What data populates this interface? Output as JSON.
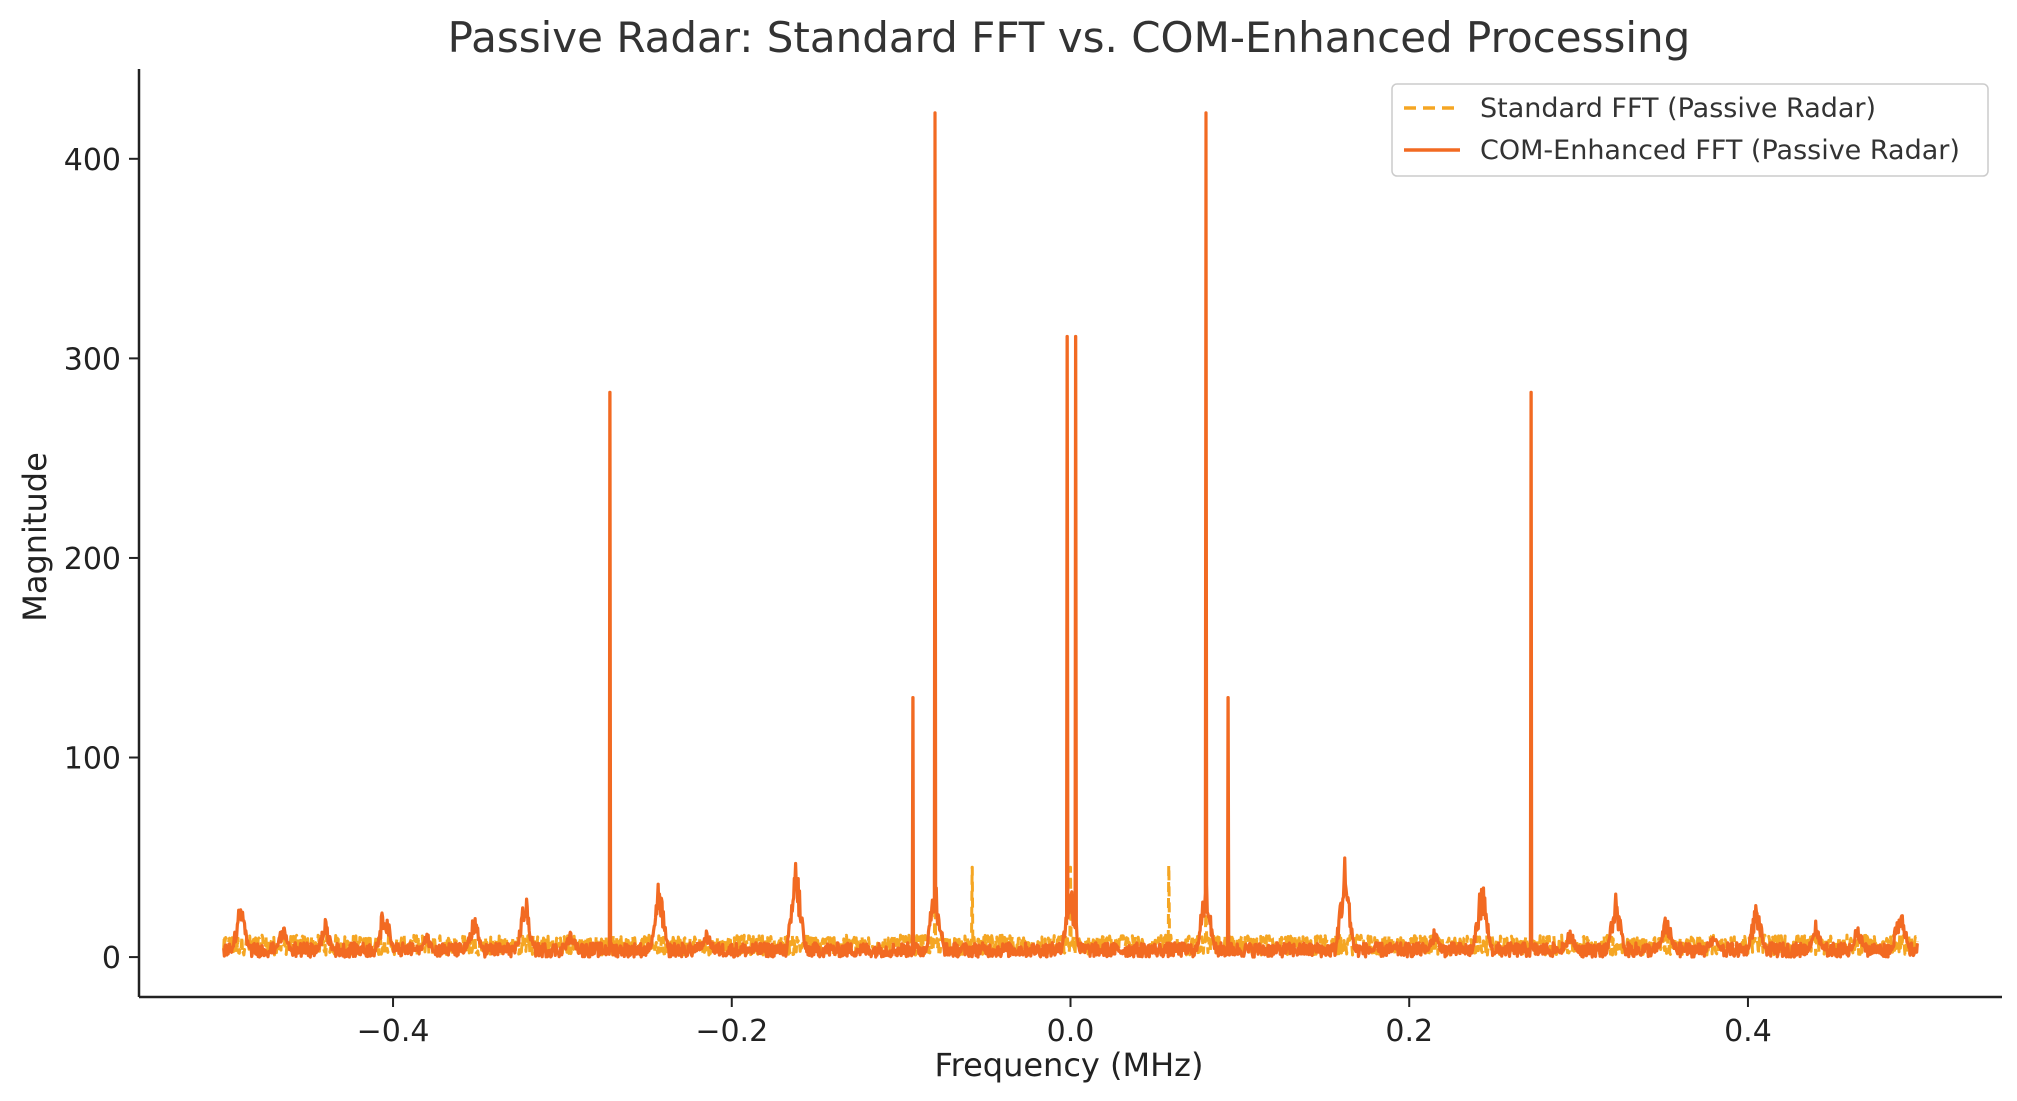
{
  "chart_data": {
    "type": "line",
    "title": "Passive Radar: Standard FFT vs. COM-Enhanced Processing",
    "xlabel": "Frequency (MHz)",
    "ylabel": "Magnitude",
    "xlim": [
      -0.55,
      0.55
    ],
    "ylim": [
      -20,
      445
    ],
    "x_data_range": [
      -0.5,
      0.5
    ],
    "xticks": [
      -0.4,
      -0.2,
      0.0,
      0.2,
      0.4
    ],
    "xtick_labels": [
      "−0.4",
      "−0.2",
      "0.0",
      "0.2",
      "0.4"
    ],
    "yticks": [
      0,
      100,
      200,
      300,
      400
    ],
    "ytick_labels": [
      "0",
      "100",
      "200",
      "300",
      "400"
    ],
    "grid": false,
    "legend_position": "top-right",
    "series": [
      {
        "name": "Standard FFT (Passive Radar)",
        "color": "#f5a623",
        "style": "dashed",
        "noise_level": 8,
        "peaks": [
          {
            "x": -0.272,
            "y": 15
          },
          {
            "x": -0.08,
            "y": 30
          },
          {
            "x": -0.058,
            "y": 45
          },
          {
            "x": 0.0,
            "y": 45
          },
          {
            "x": 0.058,
            "y": 46
          },
          {
            "x": 0.08,
            "y": 30
          },
          {
            "x": 0.272,
            "y": 15
          }
        ]
      },
      {
        "name": "COM-Enhanced FFT (Passive Radar)",
        "color": "#f26a22",
        "style": "solid",
        "noise_level": 6,
        "peaks": [
          {
            "x": -0.272,
            "y": 283
          },
          {
            "x": -0.093,
            "y": 130
          },
          {
            "x": -0.08,
            "y": 423
          },
          {
            "x": -0.002,
            "y": 311
          },
          {
            "x": 0.003,
            "y": 311
          },
          {
            "x": 0.08,
            "y": 423
          },
          {
            "x": 0.093,
            "y": 130
          },
          {
            "x": 0.272,
            "y": 283
          }
        ],
        "clusters": [
          {
            "x": -0.49,
            "y": 30
          },
          {
            "x": -0.465,
            "y": 18
          },
          {
            "x": -0.44,
            "y": 19
          },
          {
            "x": -0.405,
            "y": 30
          },
          {
            "x": -0.38,
            "y": 13
          },
          {
            "x": -0.352,
            "y": 23
          },
          {
            "x": -0.322,
            "y": 34
          },
          {
            "x": -0.295,
            "y": 15
          },
          {
            "x": -0.243,
            "y": 43
          },
          {
            "x": -0.215,
            "y": 15
          },
          {
            "x": -0.162,
            "y": 53
          },
          {
            "x": -0.08,
            "y": 44
          },
          {
            "x": 0.0,
            "y": 42
          },
          {
            "x": 0.08,
            "y": 44
          },
          {
            "x": 0.162,
            "y": 53
          },
          {
            "x": 0.215,
            "y": 15
          },
          {
            "x": 0.243,
            "y": 43
          },
          {
            "x": 0.295,
            "y": 15
          },
          {
            "x": 0.322,
            "y": 34
          },
          {
            "x": 0.352,
            "y": 23
          },
          {
            "x": 0.38,
            "y": 13
          },
          {
            "x": 0.405,
            "y": 30
          },
          {
            "x": 0.44,
            "y": 19
          },
          {
            "x": 0.465,
            "y": 18
          },
          {
            "x": 0.49,
            "y": 30
          }
        ]
      }
    ]
  }
}
